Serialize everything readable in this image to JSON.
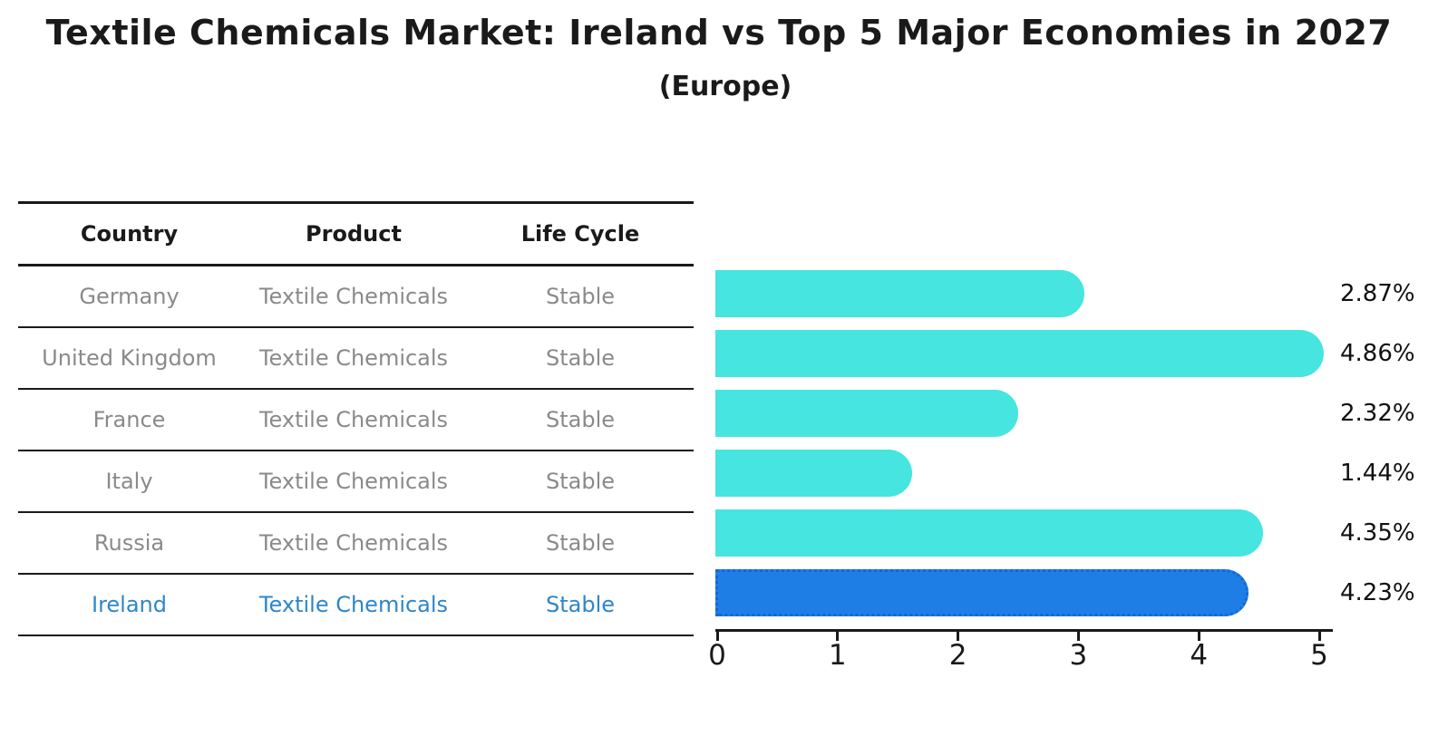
{
  "title": "Textile Chemicals Market: Ireland vs Top 5 Major Economies in 2027",
  "subtitle": "(Europe)",
  "table": {
    "headers": [
      "Country",
      "Product",
      "Life Cycle"
    ]
  },
  "chart_data": {
    "type": "bar",
    "orientation": "horizontal",
    "title": "Textile Chemicals Market: Ireland vs Top 5 Major Economies in 2027",
    "subtitle": "(Europe)",
    "xlabel": "",
    "ylabel": "",
    "xlim": [
      0,
      5
    ],
    "x_ticks": [
      "0",
      "1",
      "2",
      "3",
      "4",
      "5"
    ],
    "grid": false,
    "legend": false,
    "categories": [
      "Germany",
      "United Kingdom",
      "France",
      "Italy",
      "Russia",
      "Ireland"
    ],
    "values": [
      2.87,
      4.86,
      2.32,
      1.44,
      4.35,
      4.23
    ],
    "value_labels": [
      "2.87%",
      "4.86%",
      "2.32%",
      "1.44%",
      "4.35%",
      "4.23%"
    ],
    "highlight_index": 5,
    "rows": [
      {
        "country": "Germany",
        "product": "Textile Chemicals",
        "life_cycle": "Stable",
        "value": 2.87,
        "label": "2.87%",
        "highlight": false
      },
      {
        "country": "United Kingdom",
        "product": "Textile Chemicals",
        "life_cycle": "Stable",
        "value": 4.86,
        "label": "4.86%",
        "highlight": false
      },
      {
        "country": "France",
        "product": "Textile Chemicals",
        "life_cycle": "Stable",
        "value": 2.32,
        "label": "2.32%",
        "highlight": false
      },
      {
        "country": "Italy",
        "product": "Textile Chemicals",
        "life_cycle": "Stable",
        "value": 1.44,
        "label": "1.44%",
        "highlight": false
      },
      {
        "country": "Russia",
        "product": "Textile Chemicals",
        "life_cycle": "Stable",
        "value": 4.35,
        "label": "4.35%",
        "highlight": false
      },
      {
        "country": "Ireland",
        "product": "Textile Chemicals",
        "life_cycle": "Stable",
        "value": 4.23,
        "label": "4.23%",
        "highlight": true
      }
    ]
  },
  "colors": {
    "bar": "#46E5E0",
    "highlight_bar": "#1E7EE6",
    "highlight_border": "#1565D8",
    "row_text": "#8a8a8a",
    "highlight_text": "#2E86C8",
    "axis": "#1a1a1a"
  }
}
